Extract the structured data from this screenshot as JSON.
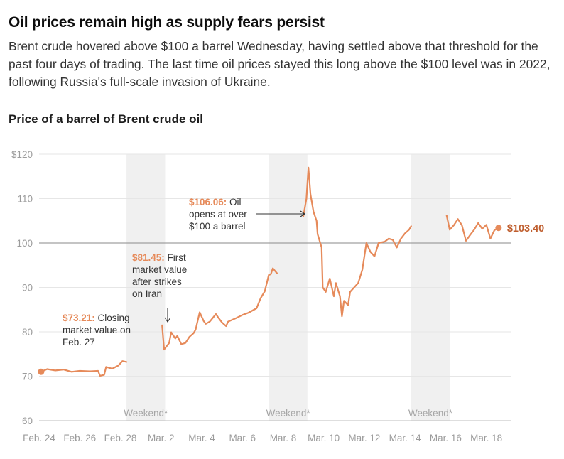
{
  "header": {
    "headline": "Oil prices remain high as supply fears persist",
    "deck": "Brent crude hovered above $100 a barrel Wednesday, having settled above that threshold for the past four days of trading. The last time oil prices stayed this long above the $100 level was in 2022, following Russia's full-scale invasion of Ukraine."
  },
  "colors": {
    "line": "#e68a5a",
    "endLabel": "#bf5e2e",
    "weekend": "#f0f0f0",
    "grid": "#e6e6e6",
    "refLine": "#8a8a8a"
  },
  "chart_data": {
    "type": "line",
    "title": "Price of a barrel of Brent crude oil",
    "xlabel": "",
    "ylabel": "",
    "ylim": [
      60,
      120
    ],
    "xlim": [
      0,
      23.2
    ],
    "yticks": [
      {
        "value": 120,
        "label": "$120"
      },
      {
        "value": 110,
        "label": "110"
      },
      {
        "value": 100,
        "label": "100"
      },
      {
        "value": 90,
        "label": "90"
      },
      {
        "value": 80,
        "label": "80"
      },
      {
        "value": 70,
        "label": "70"
      },
      {
        "value": 60,
        "label": "60"
      }
    ],
    "xticks": [
      {
        "day": 0,
        "label": "Feb. 24"
      },
      {
        "day": 2,
        "label": "Feb. 26"
      },
      {
        "day": 4,
        "label": "Feb. 28"
      },
      {
        "day": 6,
        "label": "Mar. 2"
      },
      {
        "day": 8,
        "label": "Mar. 4"
      },
      {
        "day": 10,
        "label": "Mar. 6"
      },
      {
        "day": 12,
        "label": "Mar. 8"
      },
      {
        "day": 14,
        "label": "Mar. 10"
      },
      {
        "day": 16,
        "label": "Mar. 12"
      },
      {
        "day": 18,
        "label": "Mar. 14"
      },
      {
        "day": 20,
        "label": "Mar. 16"
      },
      {
        "day": 22,
        "label": "Mar. 18"
      }
    ],
    "weekends": [
      {
        "start": 4.3,
        "end": 6.2,
        "label": "Weekend*"
      },
      {
        "start": 11.3,
        "end": 13.2,
        "label": "Weekend*"
      },
      {
        "start": 18.3,
        "end": 20.2,
        "label": "Weekend*"
      }
    ],
    "reference_line": 100,
    "segments": [
      {
        "name": "Feb 24 - Feb 27",
        "points": [
          [
            0.1,
            71.0
          ],
          [
            0.4,
            71.6
          ],
          [
            0.8,
            71.3
          ],
          [
            1.2,
            71.5
          ],
          [
            1.6,
            71.0
          ],
          [
            2.0,
            71.2
          ],
          [
            2.5,
            71.1
          ],
          [
            2.9,
            71.2
          ],
          [
            3.0,
            70.1
          ],
          [
            3.2,
            70.3
          ],
          [
            3.3,
            72.1
          ],
          [
            3.6,
            71.7
          ],
          [
            3.9,
            72.4
          ],
          [
            4.1,
            73.4
          ],
          [
            4.3,
            73.21
          ]
        ]
      },
      {
        "name": "Mar 2 - Mar 6",
        "points": [
          [
            6.05,
            81.45
          ],
          [
            6.15,
            76.0
          ],
          [
            6.4,
            77.5
          ],
          [
            6.5,
            79.9
          ],
          [
            6.7,
            78.5
          ],
          [
            6.8,
            79.1
          ],
          [
            7.0,
            77.2
          ],
          [
            7.2,
            77.5
          ],
          [
            7.4,
            78.9
          ],
          [
            7.6,
            79.7
          ],
          [
            7.7,
            80.5
          ],
          [
            7.9,
            84.4
          ],
          [
            8.1,
            82.4
          ],
          [
            8.2,
            81.8
          ],
          [
            8.4,
            82.3
          ],
          [
            8.7,
            84.0
          ],
          [
            8.8,
            83.3
          ],
          [
            9.0,
            82.1
          ],
          [
            9.2,
            81.3
          ],
          [
            9.3,
            82.3
          ],
          [
            9.7,
            83.1
          ],
          [
            10.0,
            83.8
          ],
          [
            10.3,
            84.3
          ],
          [
            10.7,
            85.3
          ],
          [
            10.9,
            87.6
          ],
          [
            11.1,
            89.1
          ],
          [
            11.3,
            92.8
          ],
          [
            11.4,
            93.0
          ],
          [
            11.5,
            94.3
          ],
          [
            11.7,
            93.2
          ]
        ]
      },
      {
        "name": "Mar 9 - Mar 13",
        "points": [
          [
            13.0,
            106.06
          ],
          [
            13.15,
            110.0
          ],
          [
            13.25,
            117.0
          ],
          [
            13.35,
            111.0
          ],
          [
            13.5,
            107.0
          ],
          [
            13.65,
            105.0
          ],
          [
            13.7,
            102.0
          ],
          [
            13.9,
            99.0
          ],
          [
            13.95,
            90.0
          ],
          [
            14.1,
            89.0
          ],
          [
            14.3,
            92.0
          ],
          [
            14.5,
            88.0
          ],
          [
            14.6,
            91.0
          ],
          [
            14.8,
            88.0
          ],
          [
            14.9,
            83.5
          ],
          [
            15.0,
            87.0
          ],
          [
            15.2,
            86.0
          ],
          [
            15.3,
            89.0
          ],
          [
            15.5,
            90.0
          ],
          [
            15.7,
            91.0
          ],
          [
            15.9,
            94.0
          ],
          [
            16.1,
            100.0
          ],
          [
            16.3,
            98.0
          ],
          [
            16.5,
            97.0
          ],
          [
            16.7,
            100.0
          ],
          [
            17.0,
            100.3
          ],
          [
            17.2,
            101.0
          ],
          [
            17.4,
            100.7
          ],
          [
            17.6,
            99.0
          ],
          [
            17.8,
            101.0
          ],
          [
            18.0,
            102.2
          ],
          [
            18.2,
            103.0
          ],
          [
            18.3,
            103.8
          ]
        ]
      },
      {
        "name": "Mar 16 - Mar 18",
        "points": [
          [
            20.05,
            106.2
          ],
          [
            20.2,
            103.0
          ],
          [
            20.4,
            104.0
          ],
          [
            20.6,
            105.4
          ],
          [
            20.8,
            104.0
          ],
          [
            21.0,
            100.5
          ],
          [
            21.2,
            101.8
          ],
          [
            21.4,
            103.0
          ],
          [
            21.6,
            104.5
          ],
          [
            21.8,
            103.2
          ],
          [
            22.0,
            104.1
          ],
          [
            22.2,
            101.0
          ],
          [
            22.4,
            102.9
          ],
          [
            22.6,
            103.4
          ]
        ]
      }
    ],
    "annotations": {
      "feb27": {
        "value": "$73.21:",
        "lines": [
          " Closing",
          "market value on",
          "Feb. 27"
        ]
      },
      "mar2": {
        "value": "$81.45:",
        "lines": [
          " First",
          "market value",
          "after strikes",
          "on Iran"
        ]
      },
      "mar9": {
        "value": "$106.06:",
        "lines": [
          " Oil",
          "opens at over",
          "$100 a barrel"
        ]
      }
    },
    "end_label": "$103.40"
  }
}
